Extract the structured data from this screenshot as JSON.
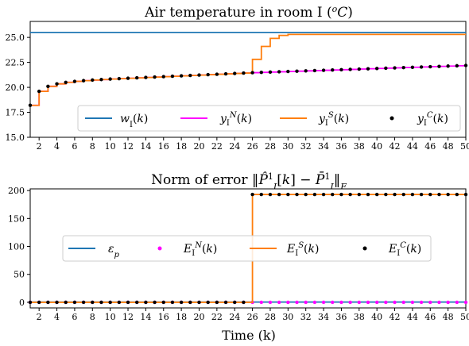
{
  "chart_data": [
    {
      "type": "line",
      "title": "Air temperature in room I (°C)",
      "xlabel": "",
      "ylabel": "",
      "xlim": [
        1,
        50
      ],
      "ylim": [
        15.0,
        26.6
      ],
      "xticks": [
        2,
        4,
        6,
        8,
        10,
        12,
        14,
        16,
        18,
        20,
        22,
        24,
        26,
        28,
        30,
        32,
        34,
        36,
        38,
        40,
        42,
        44,
        46,
        48,
        50
      ],
      "yticks": [
        15.0,
        17.5,
        20.0,
        22.5,
        25.0
      ],
      "ytick_labels": [
        "15.0",
        "17.5",
        "20.0",
        "22.5",
        "25.0"
      ],
      "legend_position": "bottom-right",
      "colors": {
        "w": "#1f77b4",
        "yN": "#ff00ff",
        "yS": "#ff7f0e",
        "yC": "#000000"
      },
      "series": [
        {
          "name": "w_I(k)",
          "style": "line",
          "x": [
            1,
            50
          ],
          "values": [
            25.5,
            25.5
          ]
        },
        {
          "name": "y_I^N(k)",
          "style": "step",
          "x": [
            1,
            2,
            3,
            4,
            5,
            6,
            7,
            8,
            9,
            10,
            11,
            12,
            13,
            14,
            15,
            16,
            17,
            18,
            19,
            20,
            21,
            22,
            23,
            24,
            25,
            26,
            27,
            28,
            29,
            30,
            31,
            32,
            33,
            34,
            35,
            36,
            37,
            38,
            39,
            40,
            41,
            42,
            43,
            44,
            45,
            46,
            47,
            48,
            49,
            50
          ],
          "values": [
            18.2,
            19.6,
            20.1,
            20.35,
            20.5,
            20.6,
            20.67,
            20.73,
            20.78,
            20.83,
            20.87,
            20.91,
            20.95,
            20.99,
            21.03,
            21.07,
            21.11,
            21.15,
            21.19,
            21.23,
            21.27,
            21.31,
            21.35,
            21.39,
            21.43,
            21.47,
            21.5,
            21.53,
            21.56,
            21.59,
            21.62,
            21.65,
            21.68,
            21.71,
            21.74,
            21.77,
            21.8,
            21.83,
            21.86,
            21.89,
            21.92,
            21.95,
            21.98,
            22.01,
            22.04,
            22.07,
            22.1,
            22.13,
            22.16,
            22.19
          ]
        },
        {
          "name": "y_I^S(k)",
          "style": "step",
          "x": [
            1,
            2,
            3,
            4,
            5,
            6,
            7,
            8,
            9,
            10,
            11,
            12,
            13,
            14,
            15,
            16,
            17,
            18,
            19,
            20,
            21,
            22,
            23,
            24,
            25,
            26,
            27,
            28,
            29,
            30,
            31,
            32,
            33,
            34,
            35,
            36,
            37,
            38,
            39,
            40,
            41,
            42,
            43,
            44,
            45,
            46,
            47,
            48,
            49,
            50
          ],
          "values": [
            18.2,
            19.6,
            20.1,
            20.35,
            20.5,
            20.6,
            20.67,
            20.73,
            20.78,
            20.83,
            20.87,
            20.91,
            20.95,
            20.99,
            21.03,
            21.07,
            21.11,
            21.15,
            21.19,
            21.23,
            21.27,
            21.31,
            21.35,
            21.39,
            21.43,
            22.8,
            24.1,
            24.9,
            25.2,
            25.3,
            25.3,
            25.3,
            25.3,
            25.3,
            25.3,
            25.3,
            25.3,
            25.3,
            25.3,
            25.3,
            25.3,
            25.3,
            25.3,
            25.3,
            25.3,
            25.3,
            25.3,
            25.3,
            25.3,
            25.3
          ]
        },
        {
          "name": "y_I^C(k)",
          "style": "points",
          "x": [
            1,
            2,
            3,
            4,
            5,
            6,
            7,
            8,
            9,
            10,
            11,
            12,
            13,
            14,
            15,
            16,
            17,
            18,
            19,
            20,
            21,
            22,
            23,
            24,
            25,
            26,
            27,
            28,
            29,
            30,
            31,
            32,
            33,
            34,
            35,
            36,
            37,
            38,
            39,
            40,
            41,
            42,
            43,
            44,
            45,
            46,
            47,
            48,
            49,
            50
          ],
          "values": [
            18.2,
            19.6,
            20.1,
            20.35,
            20.5,
            20.6,
            20.67,
            20.73,
            20.78,
            20.83,
            20.87,
            20.91,
            20.95,
            20.99,
            21.03,
            21.07,
            21.11,
            21.15,
            21.19,
            21.23,
            21.27,
            21.31,
            21.35,
            21.39,
            21.43,
            21.47,
            21.5,
            21.53,
            21.56,
            21.59,
            21.62,
            21.65,
            21.68,
            21.71,
            21.74,
            21.77,
            21.8,
            21.83,
            21.86,
            21.89,
            21.92,
            21.95,
            21.98,
            22.01,
            22.04,
            22.07,
            22.1,
            22.13,
            22.16,
            22.19
          ]
        }
      ]
    },
    {
      "type": "line",
      "title": "Norm of error ‖P̂¹_I[k] − P̄¹_I‖_F",
      "xlabel": "Time (k)",
      "ylabel": "",
      "xlim": [
        1,
        50
      ],
      "ylim": [
        -10,
        203
      ],
      "xticks": [
        2,
        4,
        6,
        8,
        10,
        12,
        14,
        16,
        18,
        20,
        22,
        24,
        26,
        28,
        30,
        32,
        34,
        36,
        38,
        40,
        42,
        44,
        46,
        48,
        50
      ],
      "yticks": [
        0,
        50,
        100,
        150,
        200
      ],
      "ytick_labels": [
        "0",
        "50",
        "100",
        "150",
        "200"
      ],
      "legend_position": "center",
      "colors": {
        "eps": "#1f77b4",
        "EN": "#ff00ff",
        "ES": "#ff7f0e",
        "EC": "#000000"
      },
      "series": [
        {
          "name": "ε_p",
          "style": "line",
          "x": [
            1,
            50
          ],
          "values": [
            0.5,
            0.5
          ]
        },
        {
          "name": "E_I^N(k)",
          "style": "points",
          "x": [
            1,
            2,
            3,
            4,
            5,
            6,
            7,
            8,
            9,
            10,
            11,
            12,
            13,
            14,
            15,
            16,
            17,
            18,
            19,
            20,
            21,
            22,
            23,
            24,
            25,
            26,
            27,
            28,
            29,
            30,
            31,
            32,
            33,
            34,
            35,
            36,
            37,
            38,
            39,
            40,
            41,
            42,
            43,
            44,
            45,
            46,
            47,
            48,
            49,
            50
          ],
          "values": [
            0,
            0,
            0,
            0,
            0,
            0,
            0,
            0,
            0,
            0,
            0,
            0,
            0,
            0,
            0,
            0,
            0,
            0,
            0,
            0,
            0,
            0,
            0,
            0,
            0,
            0,
            0,
            0,
            0,
            0,
            0,
            0,
            0,
            0,
            0,
            0,
            0,
            0,
            0,
            0,
            0,
            0,
            0,
            0,
            0,
            0,
            0,
            0,
            0,
            0
          ]
        },
        {
          "name": "E_I^S(k)",
          "style": "step",
          "x": [
            1,
            2,
            3,
            4,
            5,
            6,
            7,
            8,
            9,
            10,
            11,
            12,
            13,
            14,
            15,
            16,
            17,
            18,
            19,
            20,
            21,
            22,
            23,
            24,
            25,
            26,
            27,
            28,
            29,
            30,
            31,
            32,
            33,
            34,
            35,
            36,
            37,
            38,
            39,
            40,
            41,
            42,
            43,
            44,
            45,
            46,
            47,
            48,
            49,
            50
          ],
          "values": [
            0,
            0,
            0,
            0,
            0,
            0,
            0,
            0,
            0,
            0,
            0,
            0,
            0,
            0,
            0,
            0,
            0,
            0,
            0,
            0,
            0,
            0,
            0,
            0,
            0,
            193,
            193,
            193,
            193,
            193,
            193,
            193,
            193,
            193,
            193,
            193,
            193,
            193,
            193,
            193,
            193,
            193,
            193,
            193,
            193,
            193,
            193,
            193,
            193,
            193
          ]
        },
        {
          "name": "E_I^C(k)",
          "style": "points",
          "x": [
            1,
            2,
            3,
            4,
            5,
            6,
            7,
            8,
            9,
            10,
            11,
            12,
            13,
            14,
            15,
            16,
            17,
            18,
            19,
            20,
            21,
            22,
            23,
            24,
            25,
            26,
            27,
            28,
            29,
            30,
            31,
            32,
            33,
            34,
            35,
            36,
            37,
            38,
            39,
            40,
            41,
            42,
            43,
            44,
            45,
            46,
            47,
            48,
            49,
            50
          ],
          "values": [
            0,
            0,
            0,
            0,
            0,
            0,
            0,
            0,
            0,
            0,
            0,
            0,
            0,
            0,
            0,
            0,
            0,
            0,
            0,
            0,
            0,
            0,
            0,
            0,
            0,
            193,
            193,
            193,
            193,
            193,
            193,
            193,
            193,
            193,
            193,
            193,
            193,
            193,
            193,
            193,
            193,
            193,
            193,
            193,
            193,
            193,
            193,
            193,
            193,
            193
          ]
        }
      ]
    }
  ]
}
